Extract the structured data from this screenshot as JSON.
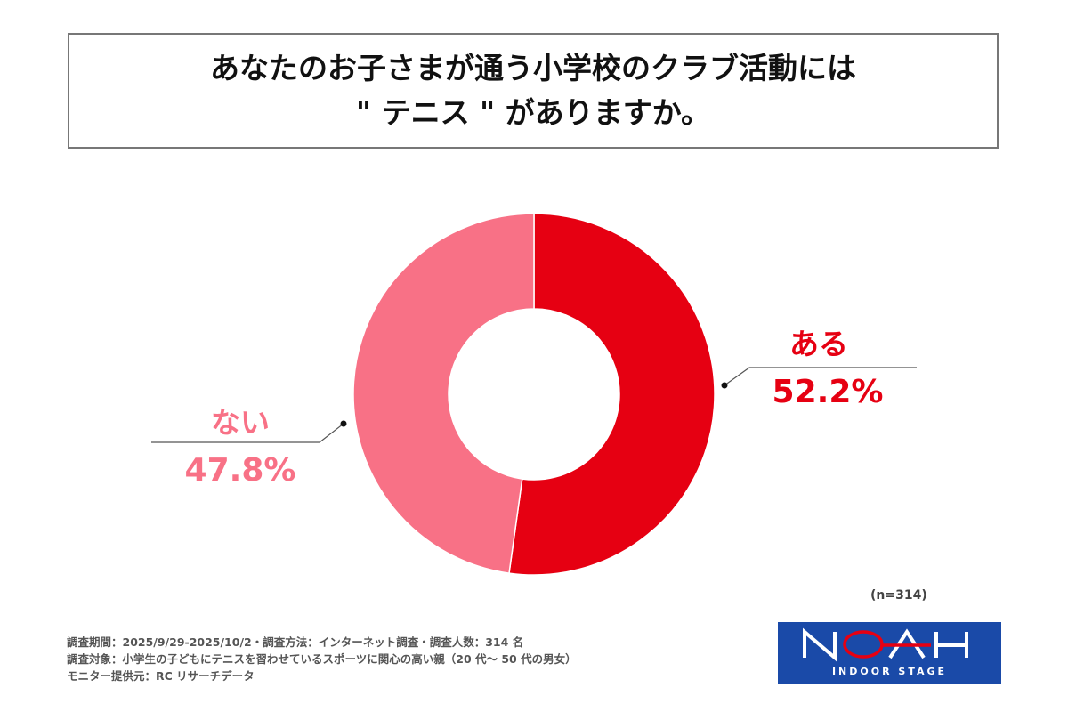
{
  "title": {
    "line1": "あなたのお子さまが通う小学校のクラブ活動には",
    "line2": "\" テニス \" がありますか。"
  },
  "chart_data": {
    "type": "pie",
    "variant": "donut",
    "title": "あなたのお子さまが通う小学校のクラブ活動には \" テニス \" がありますか。",
    "categories": [
      "ある",
      "ない"
    ],
    "values": [
      52.2,
      47.8
    ],
    "value_labels": [
      "52.2%",
      "47.8%"
    ],
    "colors": [
      "#E60012",
      "#F87186"
    ],
    "start": "12 o'clock, clockwise",
    "sample_size": "(n=314)"
  },
  "notes": [
    "調査期間：2025/9/29-2025/10/2・調査方法：インターネット調査・調査人数：314 名",
    "調査対象：小学生の子どもにテニスを習わせているスポーツに関心の高い親（20 代～ 50 代の男女）",
    "モニター提供元：RC リサーチデータ"
  ],
  "logo": {
    "name": "NOAH",
    "subtitle": "INDOOR STAGE",
    "bg_color": "#1A4AA8",
    "racket_color": "#E60012"
  }
}
